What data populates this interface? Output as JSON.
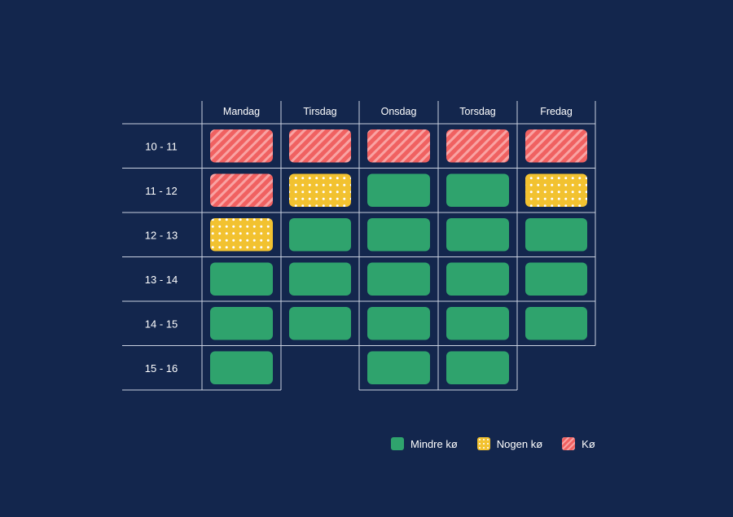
{
  "chart_data": {
    "type": "heatmap",
    "days": [
      "Mandag",
      "Tirsdag",
      "Onsdag",
      "Torsdag",
      "Fredag"
    ],
    "hours": [
      "10 - 11",
      "11 - 12",
      "12 - 13",
      "13 - 14",
      "14 - 15",
      "15 - 16"
    ],
    "cells": [
      [
        "ko",
        "ko",
        "ko",
        "ko",
        "ko"
      ],
      [
        "ko",
        "nogen",
        "mindre",
        "mindre",
        "nogen"
      ],
      [
        "nogen",
        "mindre",
        "mindre",
        "mindre",
        "mindre"
      ],
      [
        "mindre",
        "mindre",
        "mindre",
        "mindre",
        "mindre"
      ],
      [
        "mindre",
        "mindre",
        "mindre",
        "mindre",
        "mindre"
      ],
      [
        "mindre",
        null,
        "mindre",
        "mindre",
        null
      ]
    ],
    "legend": [
      {
        "key": "mindre",
        "label": "Mindre kø",
        "color": "#2fa36d",
        "pattern": "solid"
      },
      {
        "key": "nogen",
        "label": "Nogen kø",
        "color": "#f2c230",
        "pattern": "dots"
      },
      {
        "key": "ko",
        "label": "Kø",
        "color": "#f06161",
        "pattern": "stripes"
      }
    ],
    "legend_position": "bottom-right"
  },
  "colors": {
    "background": "#13264d",
    "grid": "#c9d0e0",
    "text": "#ffffff"
  }
}
